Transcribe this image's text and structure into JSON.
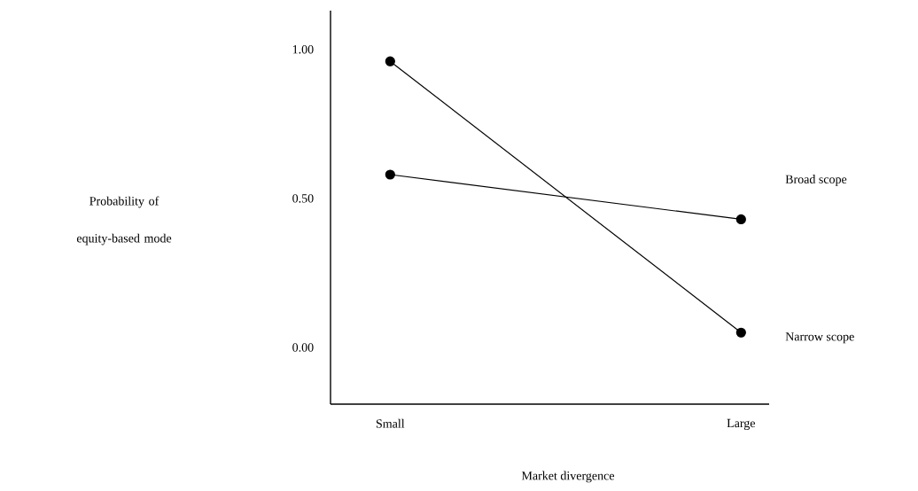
{
  "chart_data": {
    "type": "line",
    "xlabel": "Market divergence",
    "ylabel": "Probability of equity-based mode",
    "categories": [
      "Small",
      "Large"
    ],
    "series": [
      {
        "name": "Broad scope",
        "color": "#000000",
        "values": [
          0.58,
          0.43
        ]
      },
      {
        "name": "Narrow scope",
        "color": "#000000",
        "values": [
          0.96,
          0.05
        ]
      }
    ],
    "ylim": [
      -0.19,
      1.13
    ],
    "yticks": [
      {
        "value": 0,
        "label": "0.00"
      },
      {
        "value": 0.5,
        "label": "0.50"
      },
      {
        "value": 1,
        "label": "1.00"
      }
    ],
    "marker": "circle",
    "line_style": "solid",
    "legend": false,
    "grid": false
  }
}
